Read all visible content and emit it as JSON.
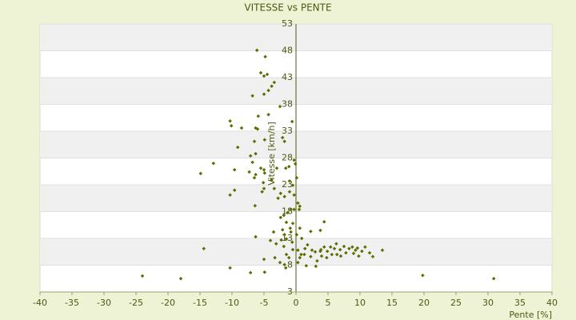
{
  "chart_data": {
    "type": "scatter",
    "title": "VITESSE vs PENTE",
    "x_label": "Pente [%]",
    "y_label": "Vitesse [km/h]",
    "color": "#5a6e00",
    "grid": true,
    "xlim": [
      -40,
      40
    ],
    "ylim": [
      3,
      53
    ],
    "xticks": [
      -40,
      -35,
      -30,
      -25,
      -20,
      -15,
      -10,
      -5,
      0,
      5,
      10,
      15,
      20,
      25,
      30,
      35,
      40
    ],
    "yticks": [
      3,
      8,
      13,
      18,
      23,
      28,
      33,
      38,
      43,
      48,
      53
    ],
    "x": [
      -6.1,
      -4.8,
      -5.5,
      -5.0,
      -4.5,
      -3.4,
      -3.8,
      -4.3,
      -5.0,
      -6.8,
      -2.5,
      -4.3,
      -5.9,
      -6.3,
      -10.3,
      -10.1,
      -8.5,
      -0.6,
      -6.0,
      -9.1,
      -6.5,
      -4.9,
      -2.1,
      -1.8,
      -7.1,
      -6.3,
      -6.8,
      -12.9,
      -14.9,
      -9.6,
      -7.3,
      -6.3,
      -5.5,
      -5.0,
      -4.9,
      -3.0,
      -1.6,
      -1.1,
      -0.3,
      -0.1,
      0.1,
      -6.5,
      -5.1,
      -5.0,
      -5.3,
      -3.4,
      -3.8,
      -9.6,
      -10.3,
      -1.0,
      -0.5,
      -0.3,
      0.3,
      0.5,
      -1.0,
      -0.3,
      -6.4,
      -2.4,
      -1.8,
      -0.8,
      0.6,
      -2.4,
      -1.9,
      -1.5,
      -0.9,
      -2.1,
      -1.8,
      -0.5,
      0.6,
      4.4,
      3.8,
      2.3,
      -3.5,
      -6.3,
      -2.3,
      -1.5,
      -3.1,
      -4.0,
      -1.9,
      -0.6,
      0.9,
      1.4,
      1.8,
      2.5,
      3.0,
      3.9,
      4.4,
      4.9,
      5.4,
      6.0,
      6.3,
      6.9,
      7.5,
      8.3,
      8.8,
      9.3,
      9.6,
      10.3,
      10.8,
      11.5,
      12.0,
      13.5,
      5.6,
      4.8,
      4.0,
      3.3,
      2.3,
      1.3,
      0.6,
      0.3,
      1.6,
      3.1,
      -3.3,
      -5.0,
      -1.1,
      -1.8,
      -10.3,
      -7.1,
      -4.9,
      -2.5,
      -1.6,
      -1.5,
      -14.4,
      -24.0,
      -18.0,
      19.8,
      30.9,
      -2.8,
      -1.3,
      -0.8,
      0.1,
      -0.5,
      0.3,
      0.8,
      7.0,
      7.8,
      9.0,
      9.8,
      6.4,
      3.8
    ],
    "values": [
      48.1,
      46.9,
      43.9,
      43.3,
      43.6,
      42.1,
      41.4,
      40.6,
      39.9,
      39.6,
      37.6,
      36.1,
      35.8,
      33.6,
      34.9,
      34.0,
      33.6,
      34.8,
      33.4,
      30.0,
      31.1,
      31.4,
      31.8,
      31.1,
      28.4,
      28.8,
      27.2,
      27.0,
      25.1,
      25.8,
      25.4,
      24.9,
      26.1,
      25.8,
      25.2,
      26.1,
      26.1,
      26.4,
      27.6,
      26.9,
      24.3,
      24.3,
      23.4,
      22.3,
      21.7,
      22.3,
      23.9,
      22.0,
      21.1,
      23.7,
      22.9,
      21.1,
      19.6,
      18.4,
      21.7,
      18.4,
      19.1,
      21.4,
      20.8,
      18.4,
      19.0,
      16.9,
      17.3,
      16.0,
      14.9,
      14.6,
      13.7,
      15.8,
      14.9,
      16.1,
      14.5,
      14.3,
      14.2,
      13.3,
      12.7,
      12.9,
      12.0,
      12.6,
      11.5,
      12.3,
      13.0,
      11.1,
      11.8,
      10.8,
      10.5,
      10.9,
      11.4,
      10.6,
      11.4,
      11.1,
      12.0,
      10.9,
      11.5,
      11.1,
      11.4,
      10.8,
      11.2,
      10.6,
      11.4,
      10.3,
      9.6,
      10.8,
      10.0,
      9.4,
      9.7,
      8.8,
      9.6,
      10.0,
      9.4,
      8.5,
      7.9,
      7.8,
      9.4,
      9.1,
      9.4,
      8.1,
      7.5,
      6.6,
      6.7,
      8.5,
      7.5,
      10.0,
      11.1,
      6.0,
      5.5,
      6.1,
      5.5,
      20.5,
      17.8,
      14.2,
      13.7,
      10.9,
      10.8,
      10.0,
      9.7,
      10.3,
      10.2,
      9.7,
      10.0,
      10.6
    ]
  }
}
